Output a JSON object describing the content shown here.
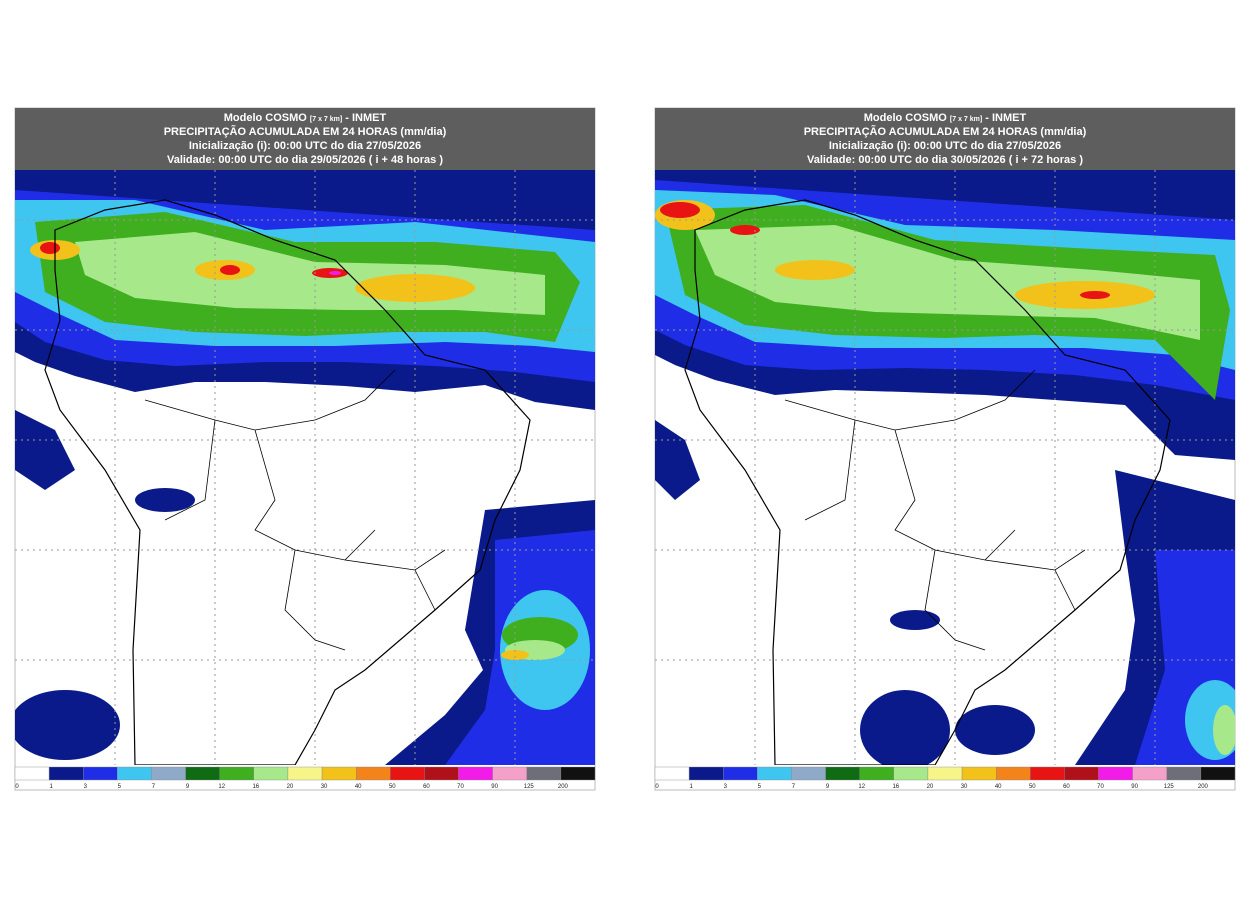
{
  "panels": [
    {
      "header": {
        "model": "Modelo COSMO",
        "resolution": "[7 x 7 km]",
        "source": "- INMET",
        "variable": "PRECIPITAÇÃO ACUMULADA EM 24 HORAS (mm/dia)",
        "init": "Inicialização (i): 00:00 UTC do dia 27/05/2026",
        "valid": "Validade: 00:00 UTC do dia 29/05/2026 ( i + 48 horas )"
      }
    },
    {
      "header": {
        "model": "Modelo COSMO",
        "resolution": "[7 x 7 km]",
        "source": "- INMET",
        "variable": "PRECIPITAÇÃO ACUMULADA EM 24 HORAS (mm/dia)",
        "init": "Inicialização (i): 00:00 UTC do dia 27/05/2026",
        "valid": "Validade: 00:00 UTC do dia 30/05/2026 ( i + 72 horas )"
      }
    }
  ],
  "colorbar": {
    "labels": [
      0,
      1,
      3,
      5,
      7,
      9,
      12,
      16,
      20,
      30,
      40,
      50,
      60,
      70,
      90,
      125,
      200
    ],
    "colors": [
      "#ffffff",
      "#0a1a8a",
      "#1f2ee6",
      "#3fc6f0",
      "#8fa9c8",
      "#0f6b14",
      "#3fae1f",
      "#a6e88a",
      "#f6f58a",
      "#f2c21b",
      "#f2841b",
      "#e81313",
      "#b0101a",
      "#f21be8",
      "#f5a0c8",
      "#6e6e78",
      "#111111"
    ]
  }
}
